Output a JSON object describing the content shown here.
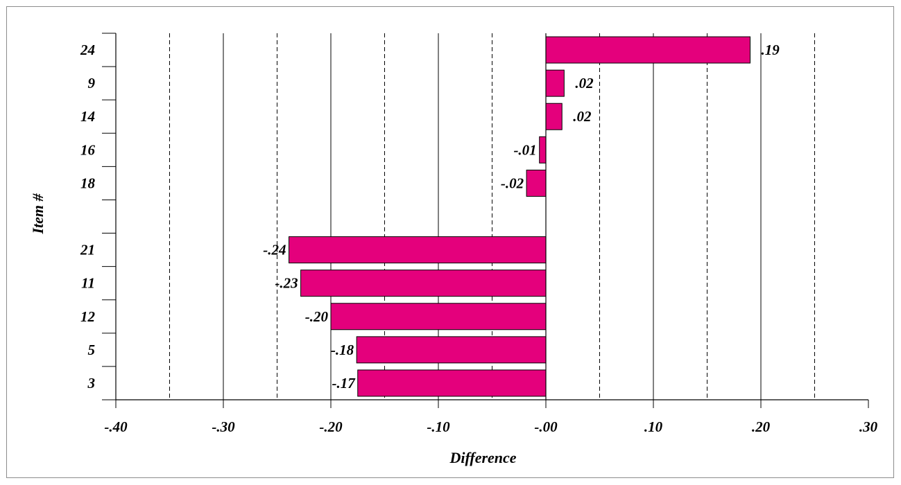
{
  "chart_data": {
    "type": "bar",
    "orientation": "horizontal",
    "title": "",
    "xlabel": "Difference",
    "ylabel": "Item #",
    "xlim": [
      -0.4,
      0.3
    ],
    "x_ticks": [
      -0.4,
      -0.3,
      -0.2,
      -0.1,
      0.0,
      0.1,
      0.2,
      0.3
    ],
    "x_tick_labels": [
      "-.40",
      "-.30",
      "-.20",
      "-.10",
      "-.00",
      ".10",
      ".20",
      ".30"
    ],
    "gridlines": {
      "major_solid": [
        -0.3,
        -0.2,
        -0.1,
        0.1,
        0.2
      ],
      "minor_dashed": [
        -0.35,
        -0.25,
        -0.15,
        -0.05,
        0.05,
        0.15,
        0.25
      ]
    },
    "row_slots": 11,
    "categories": [
      "24",
      "9",
      "14",
      "16",
      "18",
      "",
      "21",
      "11",
      "12",
      "5",
      "3"
    ],
    "values": [
      0.19,
      0.017,
      0.015,
      -0.006,
      -0.018,
      null,
      -0.239,
      -0.228,
      -0.2,
      -0.176,
      -0.175
    ],
    "data_labels": [
      ".19",
      ".02",
      ".02",
      "-.01",
      "-.02",
      "",
      "-.24",
      "-.23",
      "-.20",
      "-.18",
      "-.17"
    ],
    "bar_color": "#e4007c",
    "legend": "none"
  }
}
